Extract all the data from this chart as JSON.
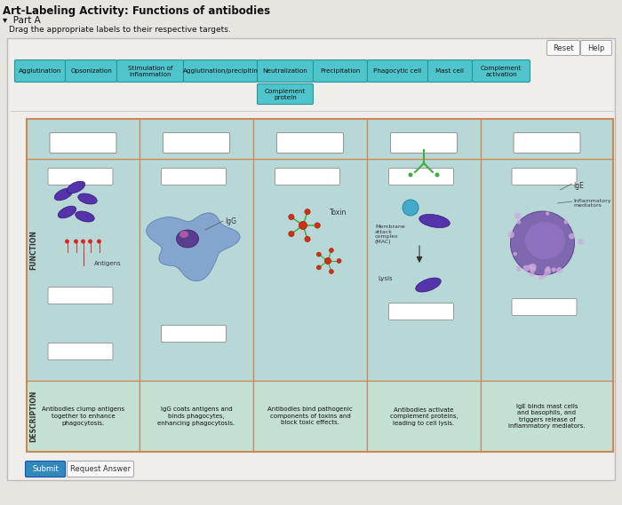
{
  "title": "Art-Labeling Activity: Functions of antibodies",
  "part": "Part A",
  "instruction": "Drag the appropriate labels to their respective targets.",
  "bg_color": "#e8e4e0",
  "panel_bg": "#f5f3f0",
  "inner_bg": "#b8d8d8",
  "button_color": "#4fc4cc",
  "button_text_color": "#111111",
  "buttons_row1": [
    "Agglutination",
    "Opsonization",
    "Stimulation of\ninflammation",
    "Agglutination/precipitin",
    "Neutralization",
    "Precipitation",
    "Phagocytic cell",
    "Mast cell",
    "Complement\nactivation"
  ],
  "buttons_row2": [
    "Complement\nprotein"
  ],
  "col_descriptions": [
    "Antibodies clump antigens\ntogether to enhance\nphagocytosis.",
    "IgG coats antigens and\nbinds phagocytes,\nenhancing phagocytosis.",
    "Antibodies bind pathogenic\ncomponents of toxins and\nblock toxic effects.",
    "Antibodies activate\ncomplement proteins,\nleading to cell lysis.",
    "IgE binds mast cells\nand basophils, and\ntriggers release of\ninflammatory mediators."
  ],
  "function_label": "FUNCTION",
  "description_label": "DESCRIPTION",
  "reset_btn": "Reset",
  "help_btn": "Help",
  "submit_btn": "Submit",
  "request_answer_btn": "Request Answer"
}
